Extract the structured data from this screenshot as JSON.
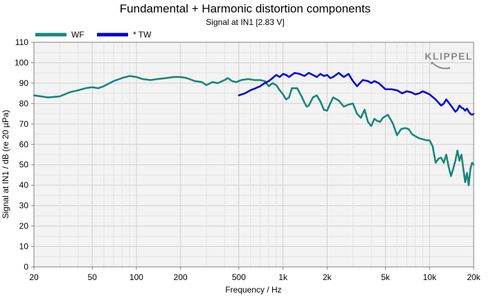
{
  "chart_data": {
    "type": "line",
    "title": "Fundamental + Harmonic distortion components",
    "subtitle": "Signal at IN1 [2.83 V]",
    "xlabel": "Frequency / Hz",
    "ylabel": "Signal at IN1 / dB (re 20 µPa)",
    "x_scale": "log",
    "xlim": [
      20,
      20000
    ],
    "ylim": [
      0,
      110
    ],
    "grid": true,
    "legend_position": "top-left",
    "xticks": [
      {
        "value": 20,
        "label": "20"
      },
      {
        "value": 50,
        "label": "50"
      },
      {
        "value": 100,
        "label": "100"
      },
      {
        "value": 200,
        "label": "200"
      },
      {
        "value": 500,
        "label": "500"
      },
      {
        "value": 1000,
        "label": "1k"
      },
      {
        "value": 2000,
        "label": "2k"
      },
      {
        "value": 5000,
        "label": "5k"
      },
      {
        "value": 10000,
        "label": "10k"
      },
      {
        "value": 20000,
        "label": "20k"
      }
    ],
    "yticks": [
      0,
      10,
      20,
      30,
      40,
      50,
      60,
      70,
      80,
      90,
      100,
      110
    ],
    "series": [
      {
        "name": "WF",
        "color": "#17877a",
        "points": [
          [
            20,
            84
          ],
          [
            25,
            83
          ],
          [
            30,
            83.5
          ],
          [
            35,
            85.5
          ],
          [
            40,
            86.5
          ],
          [
            45,
            87.5
          ],
          [
            50,
            88
          ],
          [
            55,
            87.5
          ],
          [
            60,
            88.5
          ],
          [
            70,
            91
          ],
          [
            80,
            92.5
          ],
          [
            90,
            93.5
          ],
          [
            100,
            93
          ],
          [
            110,
            92
          ],
          [
            125,
            91.5
          ],
          [
            140,
            92
          ],
          [
            160,
            92.5
          ],
          [
            180,
            93
          ],
          [
            200,
            93
          ],
          [
            220,
            92.5
          ],
          [
            250,
            91
          ],
          [
            280,
            90.5
          ],
          [
            300,
            89
          ],
          [
            330,
            90.5
          ],
          [
            360,
            90
          ],
          [
            400,
            91.5
          ],
          [
            420,
            92.5
          ],
          [
            450,
            91
          ],
          [
            480,
            90.5
          ],
          [
            520,
            91.5
          ],
          [
            580,
            92
          ],
          [
            640,
            91.5
          ],
          [
            700,
            91.5
          ],
          [
            750,
            91
          ],
          [
            800,
            88.5
          ],
          [
            850,
            90
          ],
          [
            900,
            89
          ],
          [
            950,
            86.5
          ],
          [
            1000,
            84.5
          ],
          [
            1050,
            82
          ],
          [
            1100,
            83
          ],
          [
            1150,
            87.5
          ],
          [
            1250,
            87.5
          ],
          [
            1350,
            83
          ],
          [
            1400,
            80.5
          ],
          [
            1450,
            78.5
          ],
          [
            1500,
            79
          ],
          [
            1600,
            83
          ],
          [
            1700,
            84
          ],
          [
            1800,
            81
          ],
          [
            1900,
            77
          ],
          [
            2000,
            76.5
          ],
          [
            2100,
            80
          ],
          [
            2200,
            83
          ],
          [
            2400,
            81.5
          ],
          [
            2600,
            78.5
          ],
          [
            2800,
            79.5
          ],
          [
            3000,
            80
          ],
          [
            3200,
            75
          ],
          [
            3400,
            73
          ],
          [
            3600,
            77
          ],
          [
            3800,
            71
          ],
          [
            4000,
            69
          ],
          [
            4200,
            72.5
          ],
          [
            4400,
            71.5
          ],
          [
            4600,
            71
          ],
          [
            4800,
            73
          ],
          [
            5200,
            74.5
          ],
          [
            5600,
            70.5
          ],
          [
            6000,
            64.5
          ],
          [
            6400,
            67.5
          ],
          [
            6800,
            68
          ],
          [
            7200,
            67.5
          ],
          [
            7600,
            65
          ],
          [
            8000,
            64
          ],
          [
            8500,
            63
          ],
          [
            9000,
            62.5
          ],
          [
            9500,
            62
          ],
          [
            10000,
            62
          ],
          [
            10500,
            59
          ],
          [
            11000,
            51
          ],
          [
            11500,
            53
          ],
          [
            12000,
            53.5
          ],
          [
            12500,
            51
          ],
          [
            13000,
            55
          ],
          [
            13500,
            49
          ],
          [
            14000,
            44.5
          ],
          [
            14500,
            48
          ],
          [
            15000,
            52
          ],
          [
            15500,
            57
          ],
          [
            16000,
            52
          ],
          [
            16500,
            55
          ],
          [
            17000,
            48
          ],
          [
            17500,
            41.5
          ],
          [
            18000,
            46
          ],
          [
            18500,
            40
          ],
          [
            19000,
            48
          ],
          [
            19500,
            51
          ],
          [
            20000,
            50
          ]
        ]
      },
      {
        "name": "* TW",
        "color": "#0000e0",
        "points": [
          [
            500,
            84
          ],
          [
            550,
            85
          ],
          [
            600,
            86.5
          ],
          [
            650,
            87.5
          ],
          [
            700,
            88.5
          ],
          [
            750,
            90
          ],
          [
            800,
            91
          ],
          [
            850,
            92.5
          ],
          [
            900,
            94
          ],
          [
            950,
            93
          ],
          [
            1000,
            94.5
          ],
          [
            1050,
            94
          ],
          [
            1100,
            93
          ],
          [
            1150,
            94
          ],
          [
            1200,
            95
          ],
          [
            1300,
            94.5
          ],
          [
            1400,
            93.5
          ],
          [
            1500,
            95
          ],
          [
            1600,
            94
          ],
          [
            1700,
            93
          ],
          [
            1800,
            94.5
          ],
          [
            1900,
            93.5
          ],
          [
            2000,
            94
          ],
          [
            2100,
            92.5
          ],
          [
            2200,
            93
          ],
          [
            2400,
            95
          ],
          [
            2600,
            93
          ],
          [
            2800,
            94.5
          ],
          [
            3000,
            91
          ],
          [
            3200,
            88.5
          ],
          [
            3500,
            91.5
          ],
          [
            3800,
            91
          ],
          [
            4000,
            90
          ],
          [
            4200,
            91
          ],
          [
            4500,
            90
          ],
          [
            5000,
            87
          ],
          [
            5500,
            87
          ],
          [
            6000,
            86.5
          ],
          [
            6500,
            85
          ],
          [
            7000,
            86
          ],
          [
            7500,
            85.5
          ],
          [
            8000,
            84.5
          ],
          [
            8500,
            85
          ],
          [
            9000,
            86
          ],
          [
            10000,
            84.5
          ],
          [
            11000,
            82
          ],
          [
            12000,
            79
          ],
          [
            12500,
            80
          ],
          [
            13000,
            82
          ],
          [
            13500,
            80.5
          ],
          [
            14000,
            79
          ],
          [
            14500,
            77.5
          ],
          [
            15000,
            76
          ],
          [
            15500,
            77
          ],
          [
            16000,
            79
          ],
          [
            16500,
            78
          ],
          [
            17000,
            77.5
          ],
          [
            17500,
            76.5
          ],
          [
            18000,
            77.5
          ],
          [
            18500,
            76
          ],
          [
            19000,
            75
          ],
          [
            19500,
            74.5
          ],
          [
            20000,
            75
          ]
        ]
      }
    ]
  },
  "watermark": {
    "text": "KLIPPEL",
    "color": "#777777"
  }
}
